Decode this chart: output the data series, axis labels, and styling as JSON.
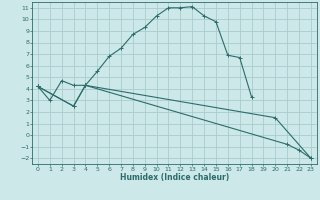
{
  "xlabel": "Humidex (Indice chaleur)",
  "bg_color": "#cce8e8",
  "grid_color": "#aacccc",
  "line_color": "#2e6b6b",
  "xlim": [
    -0.5,
    23.5
  ],
  "ylim": [
    -2.5,
    11.5
  ],
  "xticks": [
    0,
    1,
    2,
    3,
    4,
    5,
    6,
    7,
    8,
    9,
    10,
    11,
    12,
    13,
    14,
    15,
    16,
    17,
    18,
    19,
    20,
    21,
    22,
    23
  ],
  "yticks": [
    -2,
    -1,
    0,
    1,
    2,
    3,
    4,
    5,
    6,
    7,
    8,
    9,
    10,
    11
  ],
  "line1_x": [
    0,
    1,
    2,
    3,
    4,
    5,
    6,
    7,
    8,
    9,
    10,
    11,
    12,
    13,
    14,
    15,
    16,
    17,
    18
  ],
  "line1_y": [
    4.2,
    3.0,
    4.7,
    4.3,
    4.3,
    5.5,
    6.8,
    7.5,
    8.7,
    9.3,
    10.3,
    11.0,
    11.0,
    11.1,
    10.3,
    9.8,
    6.9,
    6.7,
    3.3
  ],
  "line2_x": [
    0,
    3,
    4,
    20,
    23
  ],
  "line2_y": [
    4.2,
    2.5,
    4.3,
    1.5,
    -2.0
  ],
  "line3_x": [
    0,
    3,
    4,
    21,
    22,
    23
  ],
  "line3_y": [
    4.2,
    2.5,
    4.3,
    -0.8,
    -1.3,
    -2.0
  ]
}
